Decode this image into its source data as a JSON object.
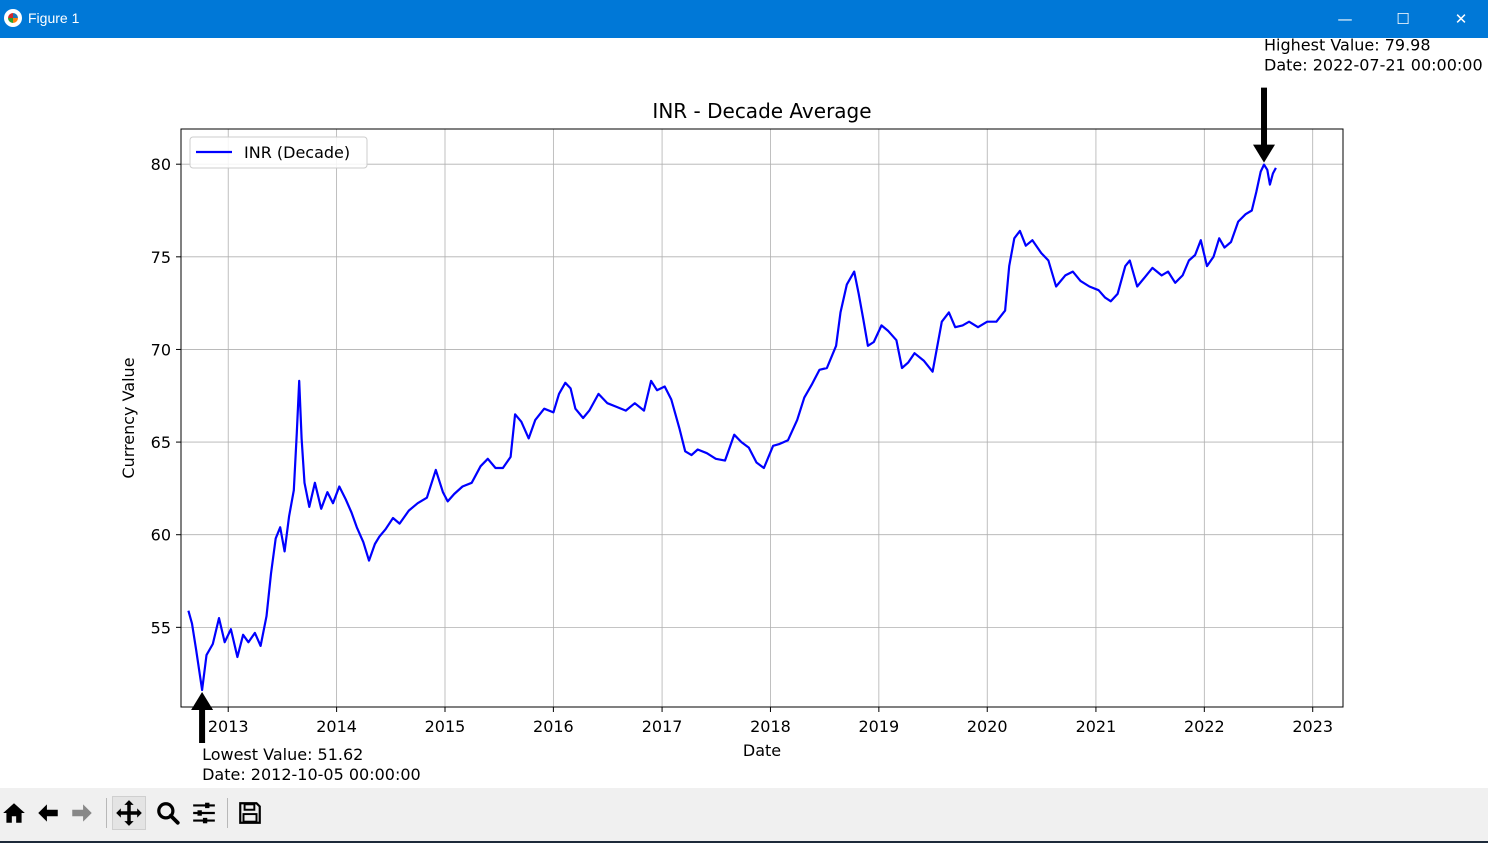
{
  "window": {
    "title": "Figure 1",
    "buttons": {
      "minimize": "—",
      "maximize": "☐",
      "close": "✕"
    }
  },
  "toolbar": {
    "buttons": [
      "home-icon",
      "back-icon",
      "forward-icon",
      "pan-icon",
      "zoom-icon",
      "configure-subplots-icon",
      "save-icon"
    ]
  },
  "chart_data": {
    "type": "line",
    "title": "INR - Decade Average",
    "xlabel": "Date",
    "ylabel": "Currency Value",
    "x_ticks": [
      "2013",
      "2014",
      "2015",
      "2016",
      "2017",
      "2018",
      "2019",
      "2020",
      "2021",
      "2022",
      "2023"
    ],
    "y_ticks": [
      55,
      60,
      65,
      70,
      75,
      80
    ],
    "xlim": [
      "2012-07-26",
      "2023-04-13"
    ],
    "ylim": [
      50.7,
      81.9
    ],
    "grid": true,
    "legend": {
      "position": "upper left",
      "entries": [
        "INR (Decade)"
      ]
    },
    "series": [
      {
        "name": "INR (Decade)",
        "color": "#0000ff",
        "x": [
          "2012-08-20",
          "2012-09-01",
          "2012-09-15",
          "2012-10-05",
          "2012-10-20",
          "2012-11-10",
          "2012-12-01",
          "2012-12-20",
          "2013-01-10",
          "2013-02-01",
          "2013-02-20",
          "2013-03-10",
          "2013-04-01",
          "2013-04-20",
          "2013-05-10",
          "2013-05-25",
          "2013-06-10",
          "2013-06-25",
          "2013-07-10",
          "2013-07-25",
          "2013-08-10",
          "2013-08-20",
          "2013-08-28",
          "2013-09-05",
          "2013-09-15",
          "2013-10-01",
          "2013-10-20",
          "2013-11-10",
          "2013-12-01",
          "2013-12-20",
          "2014-01-10",
          "2014-02-01",
          "2014-02-20",
          "2014-03-10",
          "2014-04-01",
          "2014-04-20",
          "2014-05-10",
          "2014-05-25",
          "2014-06-15",
          "2014-07-10",
          "2014-08-01",
          "2014-09-01",
          "2014-10-01",
          "2014-11-01",
          "2014-12-01",
          "2014-12-25",
          "2015-01-10",
          "2015-02-01",
          "2015-03-01",
          "2015-04-01",
          "2015-05-01",
          "2015-05-25",
          "2015-06-20",
          "2015-07-15",
          "2015-08-10",
          "2015-08-25",
          "2015-09-15",
          "2015-10-10",
          "2015-11-01",
          "2015-12-01",
          "2016-01-01",
          "2016-01-20",
          "2016-02-10",
          "2016-02-28",
          "2016-03-15",
          "2016-04-10",
          "2016-05-01",
          "2016-06-01",
          "2016-07-01",
          "2016-08-01",
          "2016-09-01",
          "2016-10-01",
          "2016-11-01",
          "2016-11-25",
          "2016-12-15",
          "2017-01-10",
          "2017-02-01",
          "2017-03-01",
          "2017-03-20",
          "2017-04-10",
          "2017-05-01",
          "2017-06-01",
          "2017-07-01",
          "2017-08-01",
          "2017-09-01",
          "2017-09-25",
          "2017-10-20",
          "2017-11-15",
          "2017-12-10",
          "2018-01-10",
          "2018-02-01",
          "2018-03-01",
          "2018-04-01",
          "2018-04-25",
          "2018-05-20",
          "2018-06-15",
          "2018-07-10",
          "2018-08-10",
          "2018-08-25",
          "2018-09-15",
          "2018-10-10",
          "2018-10-25",
          "2018-11-10",
          "2018-11-25",
          "2018-12-15",
          "2019-01-10",
          "2019-02-01",
          "2019-03-01",
          "2019-03-20",
          "2019-04-10",
          "2019-05-01",
          "2019-06-01",
          "2019-07-01",
          "2019-08-01",
          "2019-08-25",
          "2019-09-15",
          "2019-10-10",
          "2019-11-01",
          "2019-12-01",
          "2020-01-01",
          "2020-02-01",
          "2020-03-01",
          "2020-03-15",
          "2020-04-01",
          "2020-04-20",
          "2020-05-10",
          "2020-06-01",
          "2020-07-01",
          "2020-07-25",
          "2020-08-20",
          "2020-09-20",
          "2020-10-15",
          "2020-11-10",
          "2020-12-10",
          "2021-01-10",
          "2021-02-01",
          "2021-02-20",
          "2021-03-15",
          "2021-04-10",
          "2021-04-25",
          "2021-05-20",
          "2021-06-15",
          "2021-07-10",
          "2021-08-10",
          "2021-09-01",
          "2021-09-25",
          "2021-10-20",
          "2021-11-10",
          "2021-12-01",
          "2021-12-20",
          "2022-01-10",
          "2022-02-01",
          "2022-02-20",
          "2022-03-10",
          "2022-04-01",
          "2022-04-25",
          "2022-05-20",
          "2022-06-10",
          "2022-06-25",
          "2022-07-10",
          "2022-07-21",
          "2022-08-01",
          "2022-08-10",
          "2022-08-20",
          "2022-08-30"
        ],
        "y": [
          55.9,
          55.2,
          53.8,
          51.62,
          53.5,
          54.1,
          55.5,
          54.2,
          54.9,
          53.4,
          54.6,
          54.2,
          54.7,
          54.0,
          55.6,
          57.9,
          59.8,
          60.4,
          59.1,
          61.0,
          62.4,
          65.5,
          68.3,
          65.2,
          62.8,
          61.5,
          62.8,
          61.4,
          62.3,
          61.7,
          62.6,
          61.9,
          61.2,
          60.4,
          59.6,
          58.6,
          59.5,
          59.9,
          60.3,
          60.9,
          60.6,
          61.3,
          61.7,
          62.0,
          63.5,
          62.3,
          61.8,
          62.2,
          62.6,
          62.8,
          63.7,
          64.1,
          63.6,
          63.6,
          64.2,
          66.5,
          66.1,
          65.2,
          66.2,
          66.8,
          66.6,
          67.6,
          68.2,
          67.9,
          66.8,
          66.3,
          66.7,
          67.6,
          67.1,
          66.9,
          66.7,
          67.1,
          66.7,
          68.3,
          67.8,
          68.0,
          67.3,
          65.7,
          64.5,
          64.3,
          64.6,
          64.4,
          64.1,
          64.0,
          65.4,
          65.0,
          64.7,
          63.9,
          63.6,
          64.8,
          64.9,
          65.1,
          66.2,
          67.4,
          68.1,
          68.9,
          69.0,
          70.2,
          72.0,
          73.5,
          74.2,
          73.0,
          71.6,
          70.2,
          70.4,
          71.3,
          71.0,
          70.5,
          69.0,
          69.3,
          69.8,
          69.4,
          68.8,
          71.5,
          72.0,
          71.2,
          71.3,
          71.5,
          71.2,
          71.5,
          71.5,
          72.1,
          74.5,
          76.0,
          76.4,
          75.6,
          75.9,
          75.2,
          74.8,
          73.4,
          74.0,
          74.2,
          73.7,
          73.4,
          73.2,
          72.8,
          72.6,
          73.0,
          74.5,
          74.8,
          73.4,
          73.9,
          74.4,
          74.0,
          74.2,
          73.6,
          74.0,
          74.8,
          75.1,
          75.9,
          74.5,
          75.0,
          76.0,
          75.5,
          75.8,
          76.9,
          77.3,
          77.5,
          78.5,
          79.6,
          79.98,
          79.7,
          78.9,
          79.5,
          79.8
        ]
      }
    ],
    "annotations": [
      {
        "title": "Highest Value: 79.98",
        "date": "Date: 2022-07-21 00:00:00",
        "x": "2022-07-21",
        "y": 79.98,
        "direction": "down"
      },
      {
        "title": "Lowest Value: 51.62",
        "date": "Date: 2012-10-05 00:00:00",
        "x": "2012-10-05",
        "y": 51.62,
        "direction": "up"
      }
    ]
  }
}
